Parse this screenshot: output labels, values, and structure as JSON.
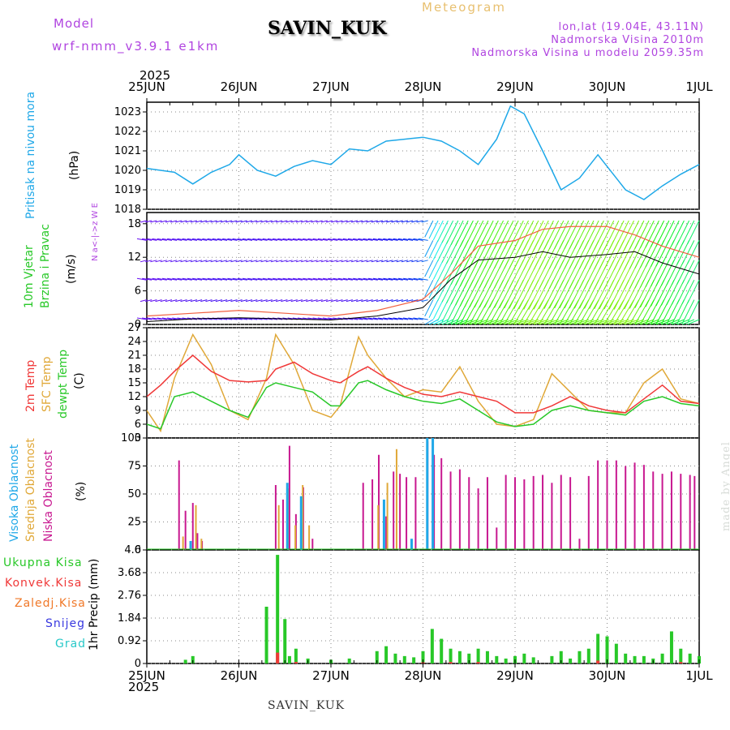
{
  "header": {
    "model_label": "Model",
    "model_name": "wrf-nmm_v3.9.1 e1km",
    "station": "SAVIN_KUK",
    "product": "Meteogram",
    "coords": "lon,lat (19.04E, 43.11N)",
    "elevation": "Nadmorska Visina 2010m",
    "model_elevation": "Nadmorska Visina u modelu 2059.35m",
    "year": "2025"
  },
  "footer": {
    "station": "SAVIN_KUK",
    "credit": "made by Angel"
  },
  "colors": {
    "pressure": "#1ea8e8",
    "temp2m": "#f03838",
    "sfc_temp": "#e0a838",
    "dewpt": "#28c828",
    "total_precip": "#28c828",
    "conv_precip": "#f03838",
    "high_cloud": "#20a8e8",
    "mid_cloud": "#e0a838",
    "low_cloud": "#c81890"
  },
  "chart_data": [
    {
      "type": "line",
      "name": "pressure",
      "ylabel_name": "Pritisak na nivou mora",
      "ylabel_unit": "(hPa)",
      "x_ticks": [
        "25JUN",
        "26JUN",
        "27JUN",
        "28JUN",
        "29JUN",
        "30JUN",
        "1JUL"
      ],
      "ylim": [
        1018,
        1023.5
      ],
      "yticks": [
        1018,
        1019,
        1020,
        1021,
        1022,
        1023
      ],
      "grid": true,
      "series": [
        {
          "x": [
            0,
            0.15,
            0.3,
            0.5,
            0.7,
            0.9,
            1.0,
            1.1,
            1.2,
            1.4,
            1.6,
            1.8,
            2.0,
            2.2,
            2.4,
            2.6,
            2.8,
            3.0,
            3.2,
            3.4,
            3.6,
            3.8,
            3.95,
            4.1,
            4.3,
            4.5,
            4.7,
            4.9,
            5.0,
            5.2,
            5.4,
            5.6,
            5.8,
            6.0
          ],
          "y": [
            1020.1,
            1020.0,
            1019.9,
            1019.3,
            1019.9,
            1020.3,
            1020.8,
            1020.4,
            1020.0,
            1019.7,
            1020.2,
            1020.5,
            1020.3,
            1021.1,
            1021.0,
            1021.5,
            1021.6,
            1021.7,
            1021.5,
            1021.0,
            1020.3,
            1021.6,
            1023.3,
            1022.9,
            1021.0,
            1019.0,
            1019.6,
            1020.8,
            1020.2,
            1019.0,
            1018.5,
            1019.2,
            1019.8,
            1020.3
          ]
        }
      ]
    },
    {
      "type": "line",
      "name": "wind",
      "ylabel_name": "10m Vjetar",
      "ylabel_name2": "Brzina i Pravac",
      "ylabel_unit": "(m/s)",
      "direction_key": "N  a<-|->z  W  E",
      "ylim": [
        0,
        20
      ],
      "yticks": [
        0,
        6,
        12,
        18
      ],
      "grid": true,
      "series": [
        {
          "name": "speed",
          "x": [
            0,
            0.5,
            1.0,
            1.5,
            2.0,
            2.5,
            3.0,
            3.3,
            3.6,
            4.0,
            4.3,
            4.6,
            5.0,
            5.3,
            5.6,
            6.0
          ],
          "y": [
            0.5,
            1.0,
            1.2,
            1.0,
            0.8,
            1.5,
            3.0,
            8.0,
            11.5,
            12.0,
            13.0,
            12.0,
            12.5,
            13.0,
            11.0,
            9.0
          ]
        },
        {
          "name": "gust",
          "x": [
            0,
            0.5,
            1.0,
            1.5,
            2.0,
            2.5,
            3.0,
            3.3,
            3.6,
            4.0,
            4.3,
            4.6,
            5.0,
            5.3,
            5.6,
            6.0
          ],
          "y": [
            1.5,
            2.0,
            2.5,
            2.0,
            1.5,
            2.5,
            4.5,
            9.0,
            14.0,
            15.0,
            17.0,
            17.5,
            17.5,
            16.0,
            14.0,
            12.0
          ]
        }
      ]
    },
    {
      "type": "line",
      "name": "temperature",
      "ylabel_names": [
        "2m Temp",
        "SFC Temp",
        "dewpt Temp"
      ],
      "ylabel_unit": "(C)",
      "ylim": [
        3,
        27
      ],
      "yticks": [
        3,
        6,
        9,
        12,
        15,
        18,
        21,
        24,
        27
      ],
      "grid": true,
      "series": [
        {
          "name": "2m Temp",
          "x": [
            0,
            0.15,
            0.3,
            0.5,
            0.7,
            0.9,
            1.1,
            1.3,
            1.4,
            1.6,
            1.8,
            2.0,
            2.1,
            2.3,
            2.4,
            2.6,
            2.8,
            3.0,
            3.2,
            3.4,
            3.6,
            3.8,
            4.0,
            4.2,
            4.4,
            4.6,
            4.8,
            5.0,
            5.2,
            5.4,
            5.6,
            5.8,
            6.0
          ],
          "y": [
            12,
            14.5,
            17.5,
            21,
            17.5,
            15.5,
            15.2,
            15.5,
            18,
            19.5,
            17,
            15.5,
            15,
            17.5,
            18.5,
            16,
            14,
            12.5,
            12,
            13,
            12,
            11,
            8.5,
            8.5,
            10,
            12,
            10,
            9,
            8.5,
            11.5,
            14.5,
            11,
            10.5
          ]
        },
        {
          "name": "SFC Temp",
          "x": [
            0,
            0.15,
            0.3,
            0.5,
            0.7,
            0.9,
            1.1,
            1.3,
            1.4,
            1.6,
            1.8,
            2.0,
            2.1,
            2.3,
            2.4,
            2.6,
            2.8,
            3.0,
            3.2,
            3.4,
            3.6,
            3.8,
            4.0,
            4.2,
            4.4,
            4.6,
            4.8,
            5.0,
            5.2,
            5.4,
            5.6,
            5.8,
            6.0
          ],
          "y": [
            9,
            4.5,
            16,
            25.5,
            19,
            9,
            7,
            16,
            25.5,
            19,
            9,
            7.5,
            10,
            25,
            21,
            16,
            12,
            13.5,
            13,
            18.5,
            11,
            6,
            5.5,
            7,
            17,
            13,
            9,
            8.5,
            8.5,
            15,
            18,
            11.5,
            10.5
          ]
        },
        {
          "name": "dewpt Temp",
          "x": [
            0,
            0.15,
            0.3,
            0.5,
            0.7,
            0.9,
            1.1,
            1.3,
            1.4,
            1.6,
            1.8,
            2.0,
            2.1,
            2.3,
            2.4,
            2.6,
            2.8,
            3.0,
            3.2,
            3.4,
            3.6,
            3.8,
            4.0,
            4.2,
            4.4,
            4.6,
            4.8,
            5.0,
            5.2,
            5.4,
            5.6,
            5.8,
            6.0
          ],
          "y": [
            6,
            5,
            12,
            13,
            11,
            9,
            7.5,
            14,
            15,
            14,
            13,
            10,
            10,
            15,
            15.5,
            13.5,
            12,
            11,
            10.5,
            11.5,
            9,
            6.5,
            5.5,
            6,
            9,
            10,
            9,
            8.5,
            8,
            11,
            12,
            10.5,
            10
          ]
        }
      ]
    },
    {
      "type": "bar",
      "name": "cloud",
      "ylabel_names": [
        "Visoka Oblacnost",
        "Srednja Oblacnost",
        "Niska Oblacnost"
      ],
      "ylabel_unit": "(%)",
      "ylim": [
        0,
        100
      ],
      "yticks": [
        0,
        25,
        50,
        75,
        100
      ],
      "grid": true,
      "series": [
        {
          "name": "Niska Oblacnost",
          "x": [
            0.35,
            0.42,
            0.5,
            0.55,
            0.6,
            1.4,
            1.48,
            1.55,
            1.62,
            1.7,
            1.8,
            2.35,
            2.45,
            2.52,
            2.6,
            2.68,
            2.75,
            2.82,
            2.92,
            3.05,
            3.12,
            3.2,
            3.3,
            3.4,
            3.5,
            3.6,
            3.7,
            3.8,
            3.9,
            4.0,
            4.1,
            4.2,
            4.3,
            4.4,
            4.5,
            4.6,
            4.7,
            4.8,
            4.9,
            5.0,
            5.1,
            5.2,
            5.3,
            5.4,
            5.5,
            5.6,
            5.7,
            5.8,
            5.9,
            5.95
          ],
          "y": [
            80,
            35,
            42,
            15,
            8,
            58,
            45,
            93,
            32,
            56,
            10,
            60,
            63,
            85,
            30,
            70,
            68,
            65,
            65,
            97,
            85,
            82,
            70,
            72,
            65,
            55,
            65,
            20,
            67,
            65,
            63,
            66,
            67,
            60,
            67,
            65,
            10,
            66,
            80,
            80,
            80,
            75,
            78,
            76,
            70,
            68,
            70,
            68,
            67,
            66
          ]
        },
        {
          "name": "Srednja Oblacnost",
          "x": [
            0.38,
            0.52,
            0.58,
            1.42,
            1.52,
            1.6,
            1.68,
            1.75,
            2.5,
            2.6,
            2.7
          ],
          "y": [
            12,
            40,
            10,
            40,
            55,
            22,
            58,
            22,
            40,
            60,
            90
          ]
        },
        {
          "name": "Visoka Oblacnost",
          "x": [
            0.45,
            1.5,
            1.65,
            2.55,
            2.85,
            3.02,
            3.08
          ],
          "y": [
            8,
            60,
            48,
            45,
            10,
            100,
            100
          ]
        }
      ]
    },
    {
      "type": "bar",
      "name": "precipitation",
      "ylabel_names": [
        "Ukupna Kisa",
        "Konvek.Kisa",
        "Zaledj.Kisa",
        "Snijeg",
        "Grad"
      ],
      "ylabel_unit": "1hr Precip (mm)",
      "ylim": [
        0,
        4.6
      ],
      "yticks": [
        0,
        0.92,
        1.84,
        2.76,
        3.68,
        4.6
      ],
      "grid": true,
      "series": [
        {
          "name": "Ukupna Kisa",
          "x": [
            0.42,
            0.5,
            1.3,
            1.42,
            1.5,
            1.55,
            1.62,
            1.75,
            2.0,
            2.2,
            2.5,
            2.6,
            2.7,
            2.8,
            2.9,
            3.0,
            3.1,
            3.2,
            3.3,
            3.4,
            3.5,
            3.6,
            3.7,
            3.8,
            3.9,
            4.0,
            4.1,
            4.2,
            4.4,
            4.5,
            4.6,
            4.7,
            4.8,
            4.9,
            5.0,
            5.1,
            5.2,
            5.3,
            5.4,
            5.5,
            5.6,
            5.7,
            5.8,
            5.9,
            6.0
          ],
          "y": [
            0.15,
            0.3,
            2.3,
            4.4,
            1.8,
            0.3,
            0.6,
            0.2,
            0.15,
            0.2,
            0.5,
            0.7,
            0.4,
            0.3,
            0.25,
            0.5,
            1.4,
            1.0,
            0.6,
            0.5,
            0.4,
            0.6,
            0.5,
            0.3,
            0.2,
            0.3,
            0.4,
            0.25,
            0.3,
            0.5,
            0.2,
            0.5,
            0.6,
            1.2,
            1.1,
            0.8,
            0.4,
            0.3,
            0.3,
            0.2,
            0.4,
            1.3,
            0.6,
            0.4,
            0.3
          ]
        }
      ]
    }
  ]
}
